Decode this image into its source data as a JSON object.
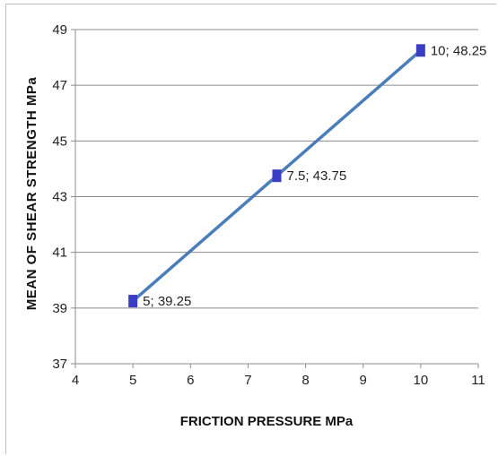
{
  "chart_data": {
    "type": "line",
    "title": "",
    "xlabel": "FRICTION PRESSURE MPa",
    "ylabel": "MEAN OF SHEAR STRENGTH  MPa",
    "xlim": [
      4,
      11
    ],
    "ylim": [
      37,
      49
    ],
    "xticks": [
      4,
      5,
      6,
      7,
      8,
      9,
      10,
      11
    ],
    "yticks": [
      37,
      39,
      41,
      43,
      45,
      47,
      49
    ],
    "grid": "horizontal",
    "legend": "none",
    "series": [
      {
        "x": [
          5,
          7.5,
          10
        ],
        "y": [
          39.25,
          43.75,
          48.25
        ],
        "data_labels": [
          "5; 39.25",
          "7.5; 43.75",
          "10; 48.25"
        ]
      }
    ],
    "colors": {
      "line": "#4a7ebb",
      "marker": "#3a3ec4",
      "grid": "#8c8c8c",
      "axis": "#8c8c8c"
    }
  }
}
